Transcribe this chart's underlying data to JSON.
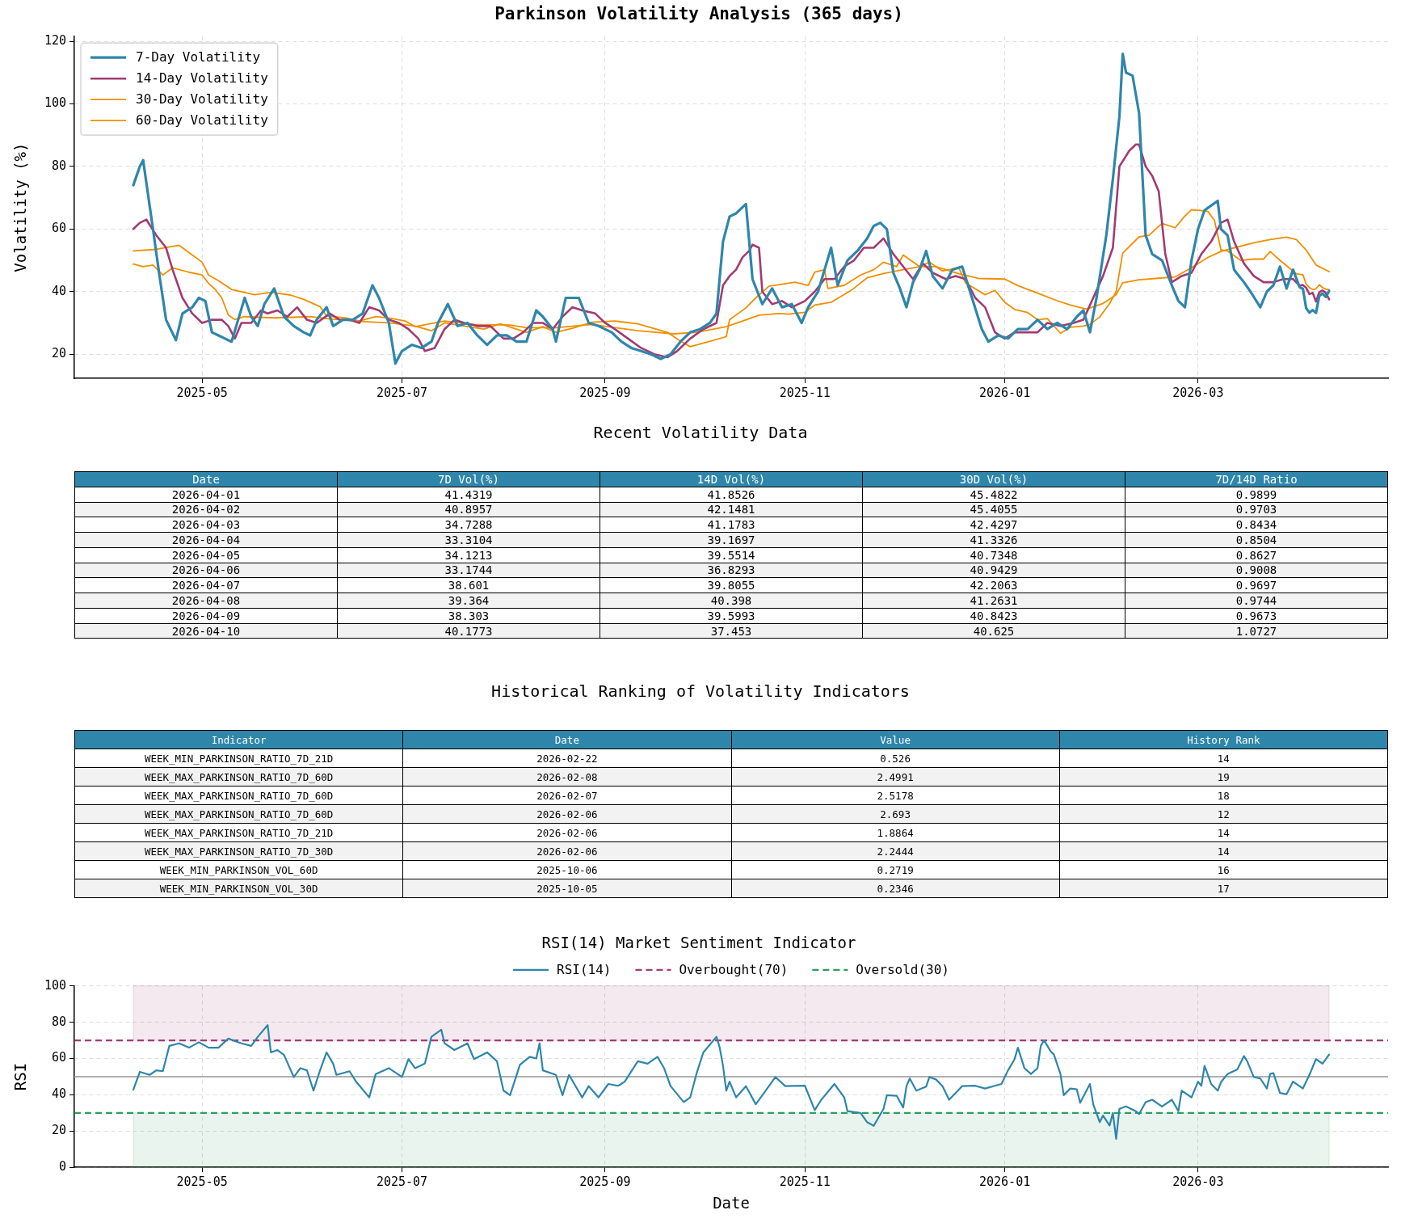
{
  "chart_data": [
    {
      "type": "line",
      "title": "Parkinson Volatility Analysis (365 days)",
      "ylabel": "Volatility (%)",
      "xlim": [
        "2025-03-23",
        "2026-04-28"
      ],
      "xticks": [
        "2025-05",
        "2025-07",
        "2025-09",
        "2025-11",
        "2026-01",
        "2026-03"
      ],
      "ylim": [
        12.3,
        121.5
      ],
      "yticks": [
        20,
        40,
        60,
        80,
        100,
        120
      ],
      "grid": true,
      "legend": "top left",
      "series": [
        {
          "name": "7-Day Volatility",
          "color": "#2e86ab",
          "x": [
            "2025-04-10",
            "2025-04-12",
            "2025-04-13",
            "2025-04-16",
            "2025-04-18",
            "2025-04-20",
            "2025-04-23",
            "2025-04-25",
            "2025-04-28",
            "2025-04-30",
            "2025-05-02",
            "2025-05-04",
            "2025-05-06",
            "2025-05-08",
            "2025-05-10",
            "2025-05-12",
            "2025-05-14",
            "2025-05-16",
            "2025-05-18",
            "2025-05-20",
            "2025-05-23",
            "2025-05-26",
            "2025-05-29",
            "2025-06-01",
            "2025-06-03",
            "2025-06-05",
            "2025-06-08",
            "2025-06-10",
            "2025-06-13",
            "2025-06-16",
            "2025-06-19",
            "2025-06-22",
            "2025-06-24",
            "2025-06-27",
            "2025-06-29",
            "2025-07-01",
            "2025-07-04",
            "2025-07-07",
            "2025-07-10",
            "2025-07-12",
            "2025-07-15",
            "2025-07-18",
            "2025-07-21",
            "2025-07-24",
            "2025-07-27",
            "2025-07-30",
            "2025-08-02",
            "2025-08-05",
            "2025-08-08",
            "2025-08-11",
            "2025-08-13",
            "2025-08-16",
            "2025-08-17",
            "2025-08-20",
            "2025-08-24",
            "2025-08-27",
            "2025-08-30",
            "2025-09-03",
            "2025-09-06",
            "2025-09-09",
            "2025-09-12",
            "2025-09-15",
            "2025-09-18",
            "2025-09-21",
            "2025-09-24",
            "2025-09-27",
            "2025-09-30",
            "2025-10-03",
            "2025-10-05",
            "2025-10-07",
            "2025-10-09",
            "2025-10-11",
            "2025-10-14",
            "2025-10-16",
            "2025-10-19",
            "2025-10-22",
            "2025-10-25",
            "2025-10-28",
            "2025-10-31",
            "2025-11-02",
            "2025-11-05",
            "2025-11-07",
            "2025-11-09",
            "2025-11-11",
            "2025-11-14",
            "2025-11-17",
            "2025-11-20",
            "2025-11-22",
            "2025-11-24",
            "2025-11-26",
            "2025-11-28",
            "2025-11-30",
            "2025-12-02",
            "2025-12-04",
            "2025-12-06",
            "2025-12-08",
            "2025-12-10",
            "2025-12-13",
            "2025-12-16",
            "2025-12-19",
            "2025-12-22",
            "2025-12-25",
            "2025-12-27",
            "2025-12-30",
            "2026-01-02",
            "2026-01-05",
            "2026-01-08",
            "2026-01-11",
            "2026-01-14",
            "2026-01-17",
            "2026-01-20",
            "2026-01-23",
            "2026-01-25",
            "2026-01-27",
            "2026-01-29",
            "2026-02-01",
            "2026-02-03",
            "2026-02-05",
            "2026-02-06",
            "2026-02-07",
            "2026-02-09",
            "2026-02-11",
            "2026-02-13",
            "2026-02-15",
            "2026-02-18",
            "2026-02-21",
            "2026-02-23",
            "2026-02-25",
            "2026-02-27",
            "2026-03-01",
            "2026-03-03",
            "2026-03-07",
            "2026-03-08",
            "2026-03-10",
            "2026-03-12",
            "2026-03-15",
            "2026-03-17",
            "2026-03-20",
            "2026-03-22",
            "2026-03-24",
            "2026-03-26",
            "2026-03-28",
            "2026-03-30",
            "2026-04-01",
            "2026-04-02",
            "2026-04-03",
            "2026-04-04",
            "2026-04-05",
            "2026-04-06",
            "2026-04-07",
            "2026-04-08",
            "2026-04-09",
            "2026-04-10"
          ],
          "values": [
            74,
            80,
            82,
            60,
            45,
            31,
            24.5,
            33,
            35,
            38,
            37,
            27,
            26,
            25,
            24,
            31,
            38,
            32,
            29,
            36,
            41,
            32,
            29,
            27,
            26,
            31,
            35,
            29,
            31,
            31,
            33,
            42,
            38,
            30,
            17,
            21,
            23,
            22,
            24,
            30,
            36,
            29,
            30,
            26,
            23,
            26,
            26,
            24,
            24,
            34,
            32,
            28,
            24,
            38,
            38,
            30,
            29,
            27,
            24,
            22,
            21,
            20,
            18.5,
            20,
            24,
            27,
            28,
            30,
            33,
            56,
            64,
            65,
            68,
            44,
            36,
            41,
            35,
            36,
            30,
            35,
            40,
            47,
            54,
            42,
            50,
            53,
            57,
            61,
            62,
            60,
            46,
            41,
            35,
            43,
            47,
            53,
            45,
            41,
            47,
            48,
            38,
            28,
            24,
            26,
            25,
            28,
            28,
            31,
            28,
            30,
            28,
            32,
            34,
            27,
            38,
            58,
            76,
            96,
            116,
            110,
            109,
            97,
            58,
            52,
            50,
            42,
            37,
            35,
            50,
            60,
            66,
            69,
            60,
            58,
            47,
            43,
            40,
            35,
            40,
            42,
            48,
            41,
            47,
            41.4,
            40.9,
            34.7,
            33.3,
            34.1,
            33.2,
            38.6,
            39.4,
            38.3,
            40.2
          ]
        },
        {
          "name": "14-Day Volatility",
          "color": "#a23b72",
          "x": [
            "2025-04-10",
            "2025-04-12",
            "2025-04-14",
            "2025-04-17",
            "2025-04-20",
            "2025-04-22",
            "2025-04-25",
            "2025-04-28",
            "2025-05-01",
            "2025-05-04",
            "2025-05-07",
            "2025-05-09",
            "2025-05-11",
            "2025-05-13",
            "2025-05-16",
            "2025-05-19",
            "2025-05-21",
            "2025-05-24",
            "2025-05-27",
            "2025-05-30",
            "2025-06-02",
            "2025-06-05",
            "2025-06-09",
            "2025-06-12",
            "2025-06-15",
            "2025-06-18",
            "2025-06-21",
            "2025-06-24",
            "2025-06-27",
            "2025-06-30",
            "2025-07-03",
            "2025-07-06",
            "2025-07-08",
            "2025-07-11",
            "2025-07-14",
            "2025-07-17",
            "2025-07-20",
            "2025-07-24",
            "2025-07-28",
            "2025-08-01",
            "2025-08-04",
            "2025-08-07",
            "2025-08-10",
            "2025-08-13",
            "2025-08-16",
            "2025-08-19",
            "2025-08-22",
            "2025-08-25",
            "2025-08-29",
            "2025-09-01",
            "2025-09-04",
            "2025-09-08",
            "2025-09-12",
            "2025-09-16",
            "2025-09-20",
            "2025-09-23",
            "2025-09-27",
            "2025-10-01",
            "2025-10-05",
            "2025-10-07",
            "2025-10-09",
            "2025-10-11",
            "2025-10-13",
            "2025-10-15",
            "2025-10-16",
            "2025-10-18",
            "2025-10-19",
            "2025-10-22",
            "2025-10-25",
            "2025-10-28",
            "2025-11-01",
            "2025-11-04",
            "2025-11-07",
            "2025-11-10",
            "2025-11-13",
            "2025-11-16",
            "2025-11-19",
            "2025-11-22",
            "2025-11-25",
            "2025-11-28",
            "2025-12-01",
            "2025-12-04",
            "2025-12-07",
            "2025-12-10",
            "2025-12-14",
            "2025-12-17",
            "2025-12-20",
            "2025-12-23",
            "2025-12-26",
            "2025-12-29",
            "2026-01-01",
            "2026-01-04",
            "2026-01-08",
            "2026-01-11",
            "2026-01-14",
            "2026-01-18",
            "2026-01-22",
            "2026-01-25",
            "2026-01-28",
            "2026-01-31",
            "2026-02-03",
            "2026-02-05",
            "2026-02-08",
            "2026-02-10",
            "2026-02-11",
            "2026-02-13",
            "2026-02-15",
            "2026-02-17",
            "2026-02-19",
            "2026-02-21",
            "2026-02-24",
            "2026-02-27",
            "2026-03-02",
            "2026-03-05",
            "2026-03-08",
            "2026-03-10",
            "2026-03-12",
            "2026-03-15",
            "2026-03-18",
            "2026-03-21",
            "2026-03-24",
            "2026-03-27",
            "2026-03-30",
            "2026-04-01",
            "2026-04-02",
            "2026-04-03",
            "2026-04-04",
            "2026-04-05",
            "2026-04-06",
            "2026-04-07",
            "2026-04-08",
            "2026-04-09",
            "2026-04-10"
          ],
          "values": [
            60,
            62,
            63,
            58,
            54,
            47,
            38,
            33,
            30,
            31,
            31,
            29,
            25,
            30,
            30,
            34,
            33,
            34,
            32,
            35,
            31,
            30,
            33,
            31,
            31,
            30,
            35,
            34,
            31,
            30,
            28,
            25,
            21,
            22,
            28,
            31,
            30,
            29,
            29,
            25,
            25,
            27,
            30,
            30,
            28,
            32,
            35,
            34,
            33,
            30,
            28,
            25,
            22,
            20,
            19,
            21,
            25,
            28,
            30,
            42,
            45,
            47,
            51,
            53,
            55,
            54,
            40,
            36,
            37,
            35,
            37,
            40,
            44,
            44,
            48,
            50,
            54,
            54,
            57,
            52,
            48,
            44,
            49,
            46,
            44,
            45,
            44,
            38,
            35,
            27,
            25,
            27,
            27,
            27,
            30,
            29,
            30,
            31,
            38,
            45,
            54,
            80,
            85,
            87,
            87,
            80,
            77,
            72,
            52,
            43,
            45,
            46,
            52,
            56,
            62,
            63,
            56,
            49,
            45,
            43,
            43,
            44,
            44,
            41.9,
            42.1,
            41.2,
            39.2,
            39.6,
            36.8,
            39.8,
            40.4,
            39.6,
            37.5
          ]
        },
        {
          "name": "30-Day Volatility",
          "color": "#f18f01",
          "x": [
            "2025-04-10",
            "2025-04-13",
            "2025-04-16",
            "2025-04-19",
            "2025-04-22",
            "2025-04-27",
            "2025-05-01",
            "2025-05-03",
            "2025-05-05",
            "2025-05-07",
            "2025-05-09",
            "2025-05-11",
            "2025-05-14",
            "2025-05-23",
            "2025-06-03",
            "2025-06-08",
            "2025-06-18",
            "2025-06-27",
            "2025-07-05",
            "2025-07-10",
            "2025-07-14",
            "2025-07-20",
            "2025-07-26",
            "2025-07-31",
            "2025-08-08",
            "2025-08-13",
            "2025-08-17",
            "2025-08-22",
            "2025-08-28",
            "2025-09-04",
            "2025-09-11",
            "2025-09-20",
            "2025-09-24",
            "2025-09-27",
            "2025-10-02",
            "2025-10-08",
            "2025-10-09",
            "2025-10-14",
            "2025-10-17",
            "2025-10-21",
            "2025-10-29",
            "2025-11-02",
            "2025-11-04",
            "2025-11-07",
            "2025-11-08",
            "2025-11-13",
            "2025-11-18",
            "2025-11-22",
            "2025-11-25",
            "2025-11-29",
            "2025-12-01",
            "2025-12-06",
            "2025-12-09",
            "2025-12-13",
            "2025-12-18",
            "2025-12-20",
            "2025-12-26",
            "2025-12-29",
            "2026-01-01",
            "2026-01-04",
            "2026-01-08",
            "2026-01-11",
            "2026-01-14",
            "2026-01-18",
            "2026-01-21",
            "2026-01-25",
            "2026-01-27",
            "2026-01-30",
            "2026-02-02",
            "2026-02-04",
            "2026-02-06",
            "2026-02-11",
            "2026-02-14",
            "2026-02-18",
            "2026-02-22",
            "2026-02-25",
            "2026-02-27",
            "2026-03-01",
            "2026-03-04",
            "2026-03-06",
            "2026-03-08",
            "2026-03-10",
            "2026-03-14",
            "2026-03-18",
            "2026-03-21",
            "2026-03-23",
            "2026-03-26",
            "2026-03-31",
            "2026-04-01",
            "2026-04-02",
            "2026-04-03",
            "2026-04-04",
            "2026-04-05",
            "2026-04-06",
            "2026-04-07",
            "2026-04-08",
            "2026-04-09",
            "2026-04-10"
          ],
          "values": [
            48.8,
            48,
            48.5,
            45.3,
            47.6,
            46.2,
            45.3,
            42.6,
            40.7,
            38,
            32.5,
            31.1,
            32,
            31.6,
            32,
            31.4,
            30.5,
            30,
            29,
            27.5,
            30,
            29,
            28,
            29.7,
            27,
            28.8,
            27,
            28.3,
            30.2,
            30.6,
            29.7,
            27,
            24.2,
            22.4,
            23.8,
            25.6,
            31,
            34.8,
            38,
            41.7,
            43,
            42,
            46.2,
            47,
            41,
            42,
            45.3,
            47,
            49.4,
            48,
            51.7,
            48,
            49.4,
            46.6,
            47.6,
            42.8,
            39,
            40.4,
            36.6,
            34.3,
            33.3,
            31,
            31.4,
            26.7,
            28.6,
            29,
            29.5,
            31.9,
            36.2,
            40,
            52.3,
            57.5,
            58,
            61.8,
            60.4,
            64.2,
            66.1,
            66,
            65.6,
            62.8,
            53.3,
            53,
            50,
            50.4,
            50.4,
            52.8,
            50,
            45.7,
            45.5,
            45.4,
            42.4,
            41.3,
            40.7,
            40.9,
            42.2,
            41.3,
            40.8,
            40.6
          ]
        },
        {
          "name": "60-Day Volatility",
          "color": "#f18f01",
          "x": [
            "2025-04-10",
            "2025-04-17",
            "2025-04-24",
            "2025-04-28",
            "2025-05-01",
            "2025-05-03",
            "2025-05-06",
            "2025-05-10",
            "2025-05-17",
            "2025-05-22",
            "2025-05-28",
            "2025-06-01",
            "2025-06-06",
            "2025-06-08",
            "2025-06-14",
            "2025-06-18",
            "2025-06-23",
            "2025-06-27",
            "2025-07-02",
            "2025-07-05",
            "2025-07-14",
            "2025-07-23",
            "2025-08-03",
            "2025-08-08",
            "2025-08-17",
            "2025-08-28",
            "2025-09-04",
            "2025-09-11",
            "2025-09-22",
            "2025-09-29",
            "2025-10-08",
            "2025-10-13",
            "2025-10-18",
            "2025-10-24",
            "2025-10-27",
            "2025-11-01",
            "2025-11-04",
            "2025-11-09",
            "2025-11-15",
            "2025-11-20",
            "2025-11-25",
            "2025-12-01",
            "2025-12-06",
            "2025-12-11",
            "2025-12-18",
            "2025-12-24",
            "2026-01-01",
            "2026-01-05",
            "2026-01-11",
            "2026-01-17",
            "2026-01-21",
            "2026-01-26",
            "2026-01-31",
            "2026-02-04",
            "2026-02-06",
            "2026-02-11",
            "2026-02-16",
            "2026-02-22",
            "2026-02-27",
            "2026-03-04",
            "2026-03-08",
            "2026-03-11",
            "2026-03-18",
            "2026-03-23",
            "2026-03-28",
            "2026-03-31",
            "2026-04-03",
            "2026-04-06",
            "2026-04-10"
          ],
          "values": [
            53,
            53.5,
            54.8,
            51.7,
            49.4,
            45.3,
            43.5,
            40.7,
            39,
            39.8,
            38.9,
            37.5,
            35.2,
            32.2,
            31.6,
            30.6,
            32,
            31.6,
            30.6,
            28.8,
            30.6,
            29.5,
            29.3,
            28.5,
            28.5,
            29.5,
            28.5,
            27.5,
            26.5,
            27,
            28.8,
            30.6,
            32.5,
            33,
            32.8,
            33.4,
            35.7,
            36.6,
            40.3,
            44.4,
            45.8,
            47,
            48,
            48,
            45.7,
            44.2,
            44,
            41.9,
            39.5,
            37.1,
            35.7,
            34.4,
            36.2,
            39,
            42.8,
            43.8,
            44.2,
            44.7,
            47.6,
            50.9,
            52.8,
            53.7,
            55.6,
            56.6,
            57.4,
            56.6,
            53.3,
            48.5,
            46.4
          ]
        }
      ]
    },
    {
      "type": "other",
      "title": "Recent Volatility Data",
      "categories": [
        "Date",
        "7D Vol(%)",
        "14D Vol(%)",
        "30D Vol(%)",
        "7D/14D Ratio"
      ],
      "cell_labels": [
        [
          "2026-04-01",
          "41.4319",
          "41.8526",
          "45.4822",
          "0.9899"
        ],
        [
          "2026-04-02",
          "40.8957",
          "42.1481",
          "45.4055",
          "0.9703"
        ],
        [
          "2026-04-03",
          "34.7288",
          "41.1783",
          "42.4297",
          "0.8434"
        ],
        [
          "2026-04-04",
          "33.3104",
          "39.1697",
          "41.3326",
          "0.8504"
        ],
        [
          "2026-04-05",
          "34.1213",
          "39.5514",
          "40.7348",
          "0.8627"
        ],
        [
          "2026-04-06",
          "33.1744",
          "36.8293",
          "40.9429",
          "0.9008"
        ],
        [
          "2026-04-07",
          "38.601",
          "39.8055",
          "42.2063",
          "0.9697"
        ],
        [
          "2026-04-08",
          "39.364",
          "40.398",
          "41.2631",
          "0.9744"
        ],
        [
          "2026-04-09",
          "38.303",
          "39.5993",
          "40.8423",
          "0.9673"
        ],
        [
          "2026-04-10",
          "40.1773",
          "37.453",
          "40.625",
          "1.0727"
        ]
      ]
    },
    {
      "type": "other",
      "title": "Historical Ranking of Volatility Indicators",
      "categories": [
        "Indicator",
        "Date",
        "Value",
        "History Rank"
      ],
      "cell_labels": [
        [
          "WEEK_MIN_PARKINSON_RATIO_7D_21D",
          "2026-02-22",
          "0.526",
          "14"
        ],
        [
          "WEEK_MAX_PARKINSON_RATIO_7D_60D",
          "2026-02-08",
          "2.4991",
          "19"
        ],
        [
          "WEEK_MAX_PARKINSON_RATIO_7D_60D",
          "2026-02-07",
          "2.5178",
          "18"
        ],
        [
          "WEEK_MAX_PARKINSON_RATIO_7D_60D",
          "2026-02-06",
          "2.693",
          "12"
        ],
        [
          "WEEK_MAX_PARKINSON_RATIO_7D_21D",
          "2026-02-06",
          "1.8864",
          "14"
        ],
        [
          "WEEK_MAX_PARKINSON_RATIO_7D_30D",
          "2026-02-06",
          "2.2444",
          "14"
        ],
        [
          "WEEK_MIN_PARKINSON_VOL_60D",
          "2025-10-06",
          "0.2719",
          "16"
        ],
        [
          "WEEK_MIN_PARKINSON_VOL_30D",
          "2025-10-05",
          "0.2346",
          "17"
        ]
      ]
    },
    {
      "type": "line",
      "title": "RSI(14) Market Sentiment Indicator",
      "xlabel": "Date",
      "ylabel": "RSI",
      "xlim": [
        "2025-03-23",
        "2026-04-28"
      ],
      "xticks": [
        "2025-05",
        "2025-07",
        "2025-09",
        "2025-11",
        "2026-01",
        "2026-03"
      ],
      "ylim": [
        0,
        100
      ],
      "yticks": [
        0,
        20,
        40,
        60,
        80,
        100
      ],
      "grid": true,
      "legend": "top",
      "bands": [
        {
          "axis": "y",
          "from": 70,
          "to": 100,
          "color": "#a23b72"
        },
        {
          "axis": "y",
          "from": 0,
          "to": 30,
          "color": "#2e9e5b"
        }
      ],
      "ref_lines": [
        {
          "axis": "y",
          "value": 70,
          "label": "Overbought(70)",
          "color": "#a23b72",
          "line_style": "dashed"
        },
        {
          "axis": "y",
          "value": 30,
          "label": "Oversold(30)",
          "color": "#2e9e5b",
          "line_style": "dashed"
        },
        {
          "axis": "y",
          "value": 50,
          "color": "#b0b0b0",
          "line_style": "solid"
        }
      ],
      "series": [
        {
          "name": "RSI(14)",
          "color": "#2e86ab",
          "x": [
            "2025-04-10",
            "2025-04-12",
            "2025-04-15",
            "2025-04-17",
            "2025-04-19",
            "2025-04-21",
            "2025-04-24",
            "2025-04-27",
            "2025-04-30",
            "2025-05-03",
            "2025-05-06",
            "2025-05-09",
            "2025-05-13",
            "2025-05-16",
            "2025-05-18",
            "2025-05-21",
            "2025-05-22",
            "2025-05-24",
            "2025-05-26",
            "2025-05-29",
            "2025-05-31",
            "2025-06-02",
            "2025-06-04",
            "2025-06-06",
            "2025-06-08",
            "2025-06-10",
            "2025-06-11",
            "2025-06-15",
            "2025-06-17",
            "2025-06-21",
            "2025-06-23",
            "2025-06-27",
            "2025-07-01",
            "2025-07-03",
            "2025-07-05",
            "2025-07-08",
            "2025-07-10",
            "2025-07-13",
            "2025-07-14",
            "2025-07-17",
            "2025-07-21",
            "2025-07-23",
            "2025-07-27",
            "2025-07-30",
            "2025-08-01",
            "2025-08-03",
            "2025-08-06",
            "2025-08-09",
            "2025-08-11",
            "2025-08-12",
            "2025-08-13",
            "2025-08-17",
            "2025-08-19",
            "2025-08-21",
            "2025-08-25",
            "2025-08-27",
            "2025-08-30",
            "2025-09-02",
            "2025-09-05",
            "2025-09-07",
            "2025-09-11",
            "2025-09-14",
            "2025-09-17",
            "2025-09-19",
            "2025-09-21",
            "2025-09-25",
            "2025-09-27",
            "2025-09-29",
            "2025-10-01",
            "2025-10-05",
            "2025-10-06",
            "2025-10-07",
            "2025-10-08",
            "2025-10-09",
            "2025-10-11",
            "2025-10-14",
            "2025-10-17",
            "2025-10-20",
            "2025-10-23",
            "2025-10-26",
            "2025-11-01",
            "2025-11-04",
            "2025-11-06",
            "2025-11-10",
            "2025-11-13",
            "2025-11-14",
            "2025-11-18",
            "2025-11-20",
            "2025-11-22",
            "2025-11-25",
            "2025-11-26",
            "2025-11-29",
            "2025-12-01",
            "2025-12-02",
            "2025-12-03",
            "2025-12-05",
            "2025-12-08",
            "2025-12-09",
            "2025-12-11",
            "2025-12-13",
            "2025-12-15",
            "2025-12-19",
            "2025-12-23",
            "2025-12-26",
            "2025-12-29",
            "2025-12-31",
            "2026-01-02",
            "2026-01-04",
            "2026-01-05",
            "2026-01-07",
            "2026-01-09",
            "2026-01-11",
            "2026-01-12",
            "2026-01-13",
            "2026-01-15",
            "2026-01-16",
            "2026-01-18",
            "2026-01-19",
            "2026-01-21",
            "2026-01-23",
            "2026-01-24",
            "2026-01-27",
            "2026-01-28",
            "2026-01-30",
            "2026-01-31",
            "2026-02-02",
            "2026-02-03",
            "2026-02-04",
            "2026-02-05",
            "2026-02-07",
            "2026-02-10",
            "2026-02-11",
            "2026-02-13",
            "2026-02-15",
            "2026-02-18",
            "2026-02-21",
            "2026-02-23",
            "2026-02-24",
            "2026-02-27",
            "2026-03-01",
            "2026-03-02",
            "2026-03-03",
            "2026-03-05",
            "2026-03-07",
            "2026-03-08",
            "2026-03-10",
            "2026-03-13",
            "2026-03-15",
            "2026-03-16",
            "2026-03-18",
            "2026-03-20",
            "2026-03-22",
            "2026-03-23",
            "2026-03-24",
            "2026-03-26",
            "2026-03-28",
            "2026-03-30",
            "2026-04-02",
            "2026-04-04",
            "2026-04-06",
            "2026-04-08",
            "2026-04-10"
          ],
          "values": [
            42.8,
            52.7,
            51,
            53.5,
            53,
            67,
            68.4,
            66,
            69,
            66,
            66,
            71,
            68.4,
            67,
            72,
            78.4,
            63.4,
            64.7,
            62,
            49.8,
            54.7,
            53.5,
            42.3,
            53.5,
            63.4,
            57.2,
            51,
            53,
            47.3,
            38.6,
            51.5,
            54.7,
            49.8,
            59.7,
            54.7,
            57.2,
            72,
            75.9,
            68.4,
            64.7,
            68.4,
            59.7,
            63.4,
            58.5,
            42.3,
            39.8,
            56.5,
            61,
            60,
            68.4,
            53.5,
            51,
            39.8,
            51,
            38.6,
            44.8,
            38.6,
            46,
            45,
            47.3,
            58.5,
            57.2,
            61,
            54.7,
            44.8,
            36,
            38.6,
            52.2,
            63.4,
            72,
            66,
            56,
            42.3,
            47.3,
            38.6,
            44.8,
            34.8,
            42.3,
            49.8,
            44.8,
            45,
            31.6,
            37.3,
            46,
            38.6,
            31,
            30,
            24.9,
            22.9,
            32.3,
            39.8,
            39.5,
            33,
            44.8,
            49,
            42.3,
            44.5,
            49.8,
            48.5,
            44.8,
            37.3,
            44.8,
            45,
            43.5,
            45,
            46,
            53.5,
            59.7,
            66,
            54.7,
            51.5,
            54.7,
            67,
            70.1,
            64,
            62.2,
            51.5,
            39.8,
            43.5,
            43,
            35.6,
            46,
            34.8,
            24.9,
            28.6,
            23.1,
            30,
            15.7,
            32.3,
            33.6,
            31,
            29.4,
            36,
            37.3,
            33.6,
            37.3,
            31,
            42.3,
            38.6,
            47.3,
            45,
            56,
            46,
            42.3,
            47,
            51.5,
            54,
            61.4,
            58.5,
            49.8,
            49,
            43.5,
            51.5,
            52,
            41,
            40.3,
            47.3,
            43.5,
            51,
            59.7,
            57.2,
            62.2
          ]
        }
      ]
    }
  ]
}
